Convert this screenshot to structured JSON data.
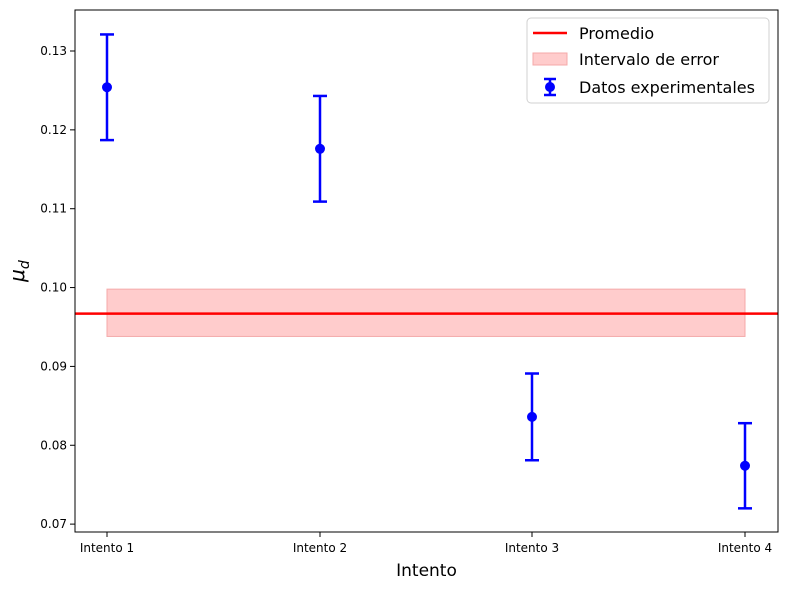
{
  "chart_data": {
    "type": "scatter",
    "xlabel": "Intento",
    "ylabel": "μ",
    "ylabel_subscript": "d",
    "categories": [
      "Intento 1",
      "Intento 2",
      "Intento 3",
      "Intento 4"
    ],
    "ylim": [
      0.069,
      0.1352
    ],
    "yticks": [
      "0.07",
      "0.08",
      "0.09",
      "0.10",
      "0.11",
      "0.12",
      "0.13"
    ],
    "series": [
      {
        "name": "Datos experimentales",
        "color": "#0000ff",
        "values": [
          0.1254,
          0.1176,
          0.0836,
          0.0774
        ],
        "errors": [
          0.0067,
          0.0067,
          0.0055,
          0.0054
        ]
      }
    ],
    "average": {
      "name": "Promedio",
      "value": 0.0967,
      "color": "#ff0000"
    },
    "error_band": {
      "name": "Intervalo de error",
      "low": 0.0938,
      "high": 0.0998,
      "color": "#ffcccc"
    },
    "legend": {
      "placement": "top-right",
      "entries": [
        "Promedio",
        "Intervalo de error",
        "Datos experimentales"
      ]
    },
    "grid": false
  }
}
